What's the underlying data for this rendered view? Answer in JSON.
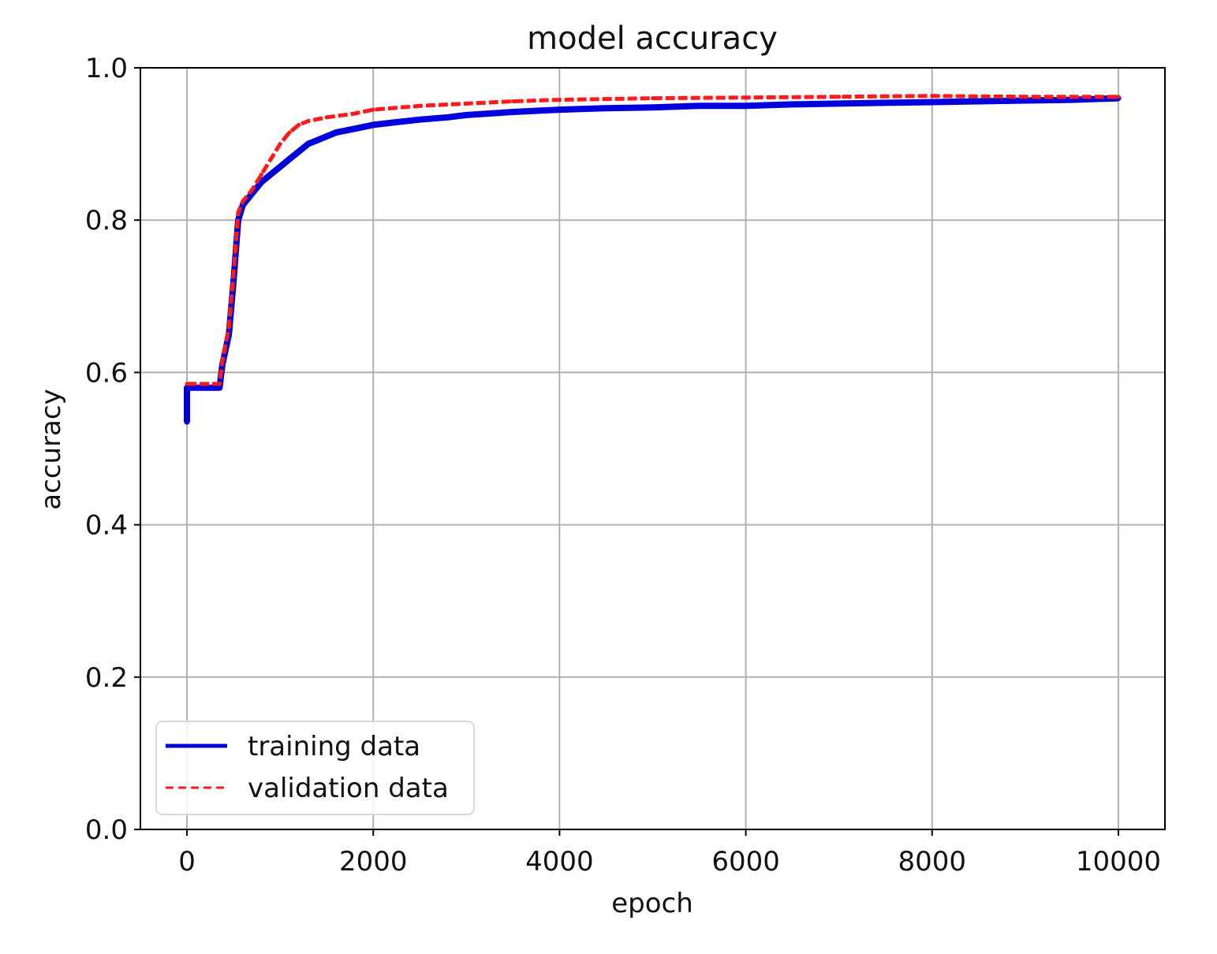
{
  "chart_data": {
    "type": "line",
    "title": "model accuracy",
    "xlabel": "epoch",
    "ylabel": "accuracy",
    "xlim": [
      -500,
      10500
    ],
    "ylim": [
      0.0,
      1.0
    ],
    "xticks": [
      0,
      2000,
      4000,
      6000,
      8000,
      10000
    ],
    "xtick_labels": [
      "0",
      "2000",
      "4000",
      "6000",
      "8000",
      "10000"
    ],
    "yticks": [
      0.0,
      0.2,
      0.4,
      0.6,
      0.8,
      1.0
    ],
    "ytick_labels": [
      "0.0",
      "0.2",
      "0.4",
      "0.6",
      "0.8",
      "1.0"
    ],
    "grid": true,
    "legend_position": "lower-left",
    "colors": {
      "training": "#0000dd",
      "validation": "#ff1a1a",
      "grid": "#b0b0b0",
      "axes": "#000000"
    },
    "series": [
      {
        "name": "training data",
        "style": "solid",
        "x": [
          0,
          0,
          20,
          350,
          380,
          450,
          500,
          550,
          600,
          700,
          800,
          900,
          1000,
          1100,
          1200,
          1300,
          1400,
          1500,
          1600,
          1800,
          2000,
          2200,
          2500,
          2800,
          3000,
          3500,
          4000,
          4500,
          5000,
          5500,
          6000,
          6500,
          7000,
          7500,
          8000,
          8500,
          9000,
          9500,
          10000
        ],
        "y": [
          0.535,
          0.58,
          0.58,
          0.58,
          0.61,
          0.65,
          0.72,
          0.8,
          0.82,
          0.835,
          0.85,
          0.86,
          0.87,
          0.88,
          0.89,
          0.9,
          0.905,
          0.91,
          0.915,
          0.92,
          0.925,
          0.928,
          0.932,
          0.935,
          0.938,
          0.942,
          0.945,
          0.947,
          0.948,
          0.95,
          0.95,
          0.952,
          0.953,
          0.954,
          0.955,
          0.956,
          0.957,
          0.958,
          0.96
        ]
      },
      {
        "name": "validation data",
        "style": "dashed",
        "x": [
          0,
          20,
          350,
          380,
          450,
          500,
          550,
          600,
          700,
          800,
          900,
          1000,
          1100,
          1200,
          1300,
          1500,
          1800,
          2000,
          2500,
          3000,
          3500,
          4000,
          5000,
          6000,
          7000,
          8000,
          9000,
          10000
        ],
        "y": [
          0.585,
          0.585,
          0.585,
          0.615,
          0.66,
          0.73,
          0.81,
          0.825,
          0.84,
          0.86,
          0.88,
          0.9,
          0.915,
          0.925,
          0.93,
          0.935,
          0.94,
          0.945,
          0.95,
          0.953,
          0.956,
          0.958,
          0.96,
          0.961,
          0.962,
          0.963,
          0.962,
          0.962
        ]
      }
    ]
  }
}
